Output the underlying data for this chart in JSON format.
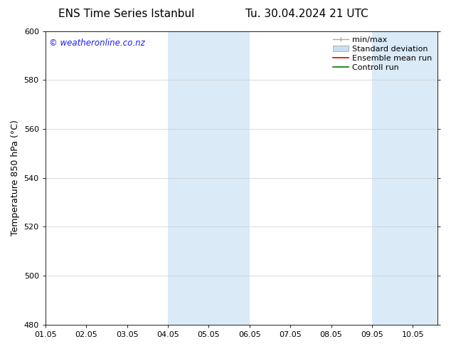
{
  "title_left": "ENS Time Series Istanbul",
  "title_right": "Tu. 30.04.2024 21 UTC",
  "ylabel": "Temperature 850 hPa (°C)",
  "xlim_start": 0,
  "xlim_end": 9.6,
  "ylim_bottom": 480,
  "ylim_top": 600,
  "yticks": [
    480,
    500,
    520,
    540,
    560,
    580,
    600
  ],
  "xtick_labels": [
    "01.05",
    "02.05",
    "03.05",
    "04.05",
    "05.05",
    "06.05",
    "07.05",
    "08.05",
    "09.05",
    "10.05"
  ],
  "xtick_positions": [
    0,
    1,
    2,
    3,
    4,
    5,
    6,
    7,
    8,
    9
  ],
  "shaded_bands": [
    {
      "x_start": 3,
      "x_end": 5,
      "color": "#daeaf7"
    },
    {
      "x_start": 8,
      "x_end": 9.6,
      "color": "#daeaf7"
    }
  ],
  "watermark_text": "© weatheronline.co.nz",
  "watermark_color": "#1a1aff",
  "watermark_fontsize": 8.5,
  "legend_items": [
    {
      "label": "min/max",
      "color": "#aaaaaa",
      "type": "minmax"
    },
    {
      "label": "Standard deviation",
      "color": "#c8dff0",
      "type": "patch"
    },
    {
      "label": "Ensemble mean run",
      "color": "#dd0000",
      "type": "line"
    },
    {
      "label": "Controll run",
      "color": "#007700",
      "type": "line"
    }
  ],
  "bg_color": "#ffffff",
  "spine_color": "#000000",
  "grid_color": "#cccccc",
  "title_fontsize": 11,
  "axis_label_fontsize": 9,
  "tick_fontsize": 8,
  "legend_fontsize": 8
}
